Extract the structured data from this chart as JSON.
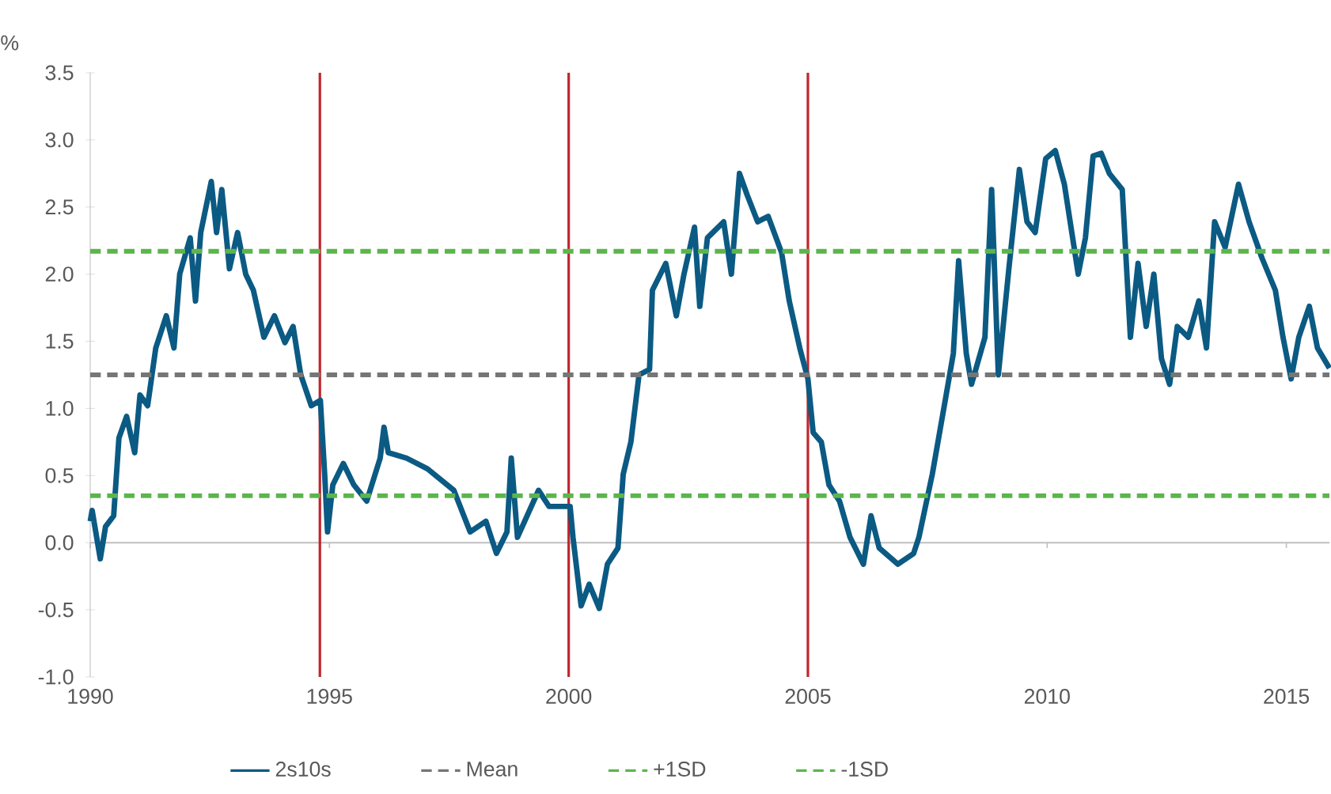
{
  "chart_data": {
    "type": "line",
    "ylabel": "%",
    "xlim": [
      1990,
      2015.9
    ],
    "xticks": [
      1990,
      1995,
      2000,
      2005,
      2010,
      2015
    ],
    "ylim": [
      -1,
      3.5
    ],
    "yticks": [
      {
        "value": -1,
        "label": "-1.0"
      },
      -0.5,
      {
        "value": 0,
        "label": "0.0"
      },
      0.5,
      {
        "value": 1,
        "label": "1.0"
      },
      1.5,
      {
        "value": 2,
        "label": "2.0"
      },
      2.5,
      {
        "value": 3,
        "label": "3.0"
      },
      3.5
    ],
    "legend": "bottom",
    "marker": "none",
    "series": [
      {
        "name": "2s10s",
        "color": "#0b5a83",
        "line_style": "solid",
        "x": [
          1990.0,
          1990.04,
          1990.21,
          1990.32,
          1990.49,
          1990.6,
          1990.76,
          1990.93,
          1991.04,
          1991.2,
          1991.37,
          1991.59,
          1991.75,
          1991.87,
          1992.09,
          1992.2,
          1992.31,
          1992.53,
          1992.64,
          1992.75,
          1992.91,
          1993.08,
          1993.25,
          1993.41,
          1993.63,
          1993.85,
          1994.07,
          1994.24,
          1994.4,
          1994.62,
          1994.81,
          1994.9,
          1994.96,
          1995.07,
          1995.29,
          1995.51,
          1995.78,
          1996.06,
          1996.14,
          1996.23,
          1996.61,
          1997.05,
          1997.6,
          1997.94,
          1998.27,
          1998.49,
          1998.71,
          1998.8,
          1998.93,
          1999.37,
          1999.59,
          2000.03,
          2000.09,
          2000.26,
          2000.43,
          2000.64,
          2000.81,
          2001.03,
          2001.14,
          2001.3,
          2001.47,
          2001.69,
          2001.75,
          2002.03,
          2002.25,
          2002.41,
          2002.63,
          2002.74,
          2002.9,
          2003.24,
          2003.4,
          2003.57,
          2003.73,
          2003.95,
          2004.17,
          2004.45,
          2004.61,
          2004.83,
          2005.0,
          2005.11,
          2005.28,
          2005.44,
          2005.66,
          2005.88,
          2006.16,
          2006.32,
          2006.49,
          2006.88,
          2007.21,
          2007.32,
          2007.6,
          2007.87,
          2008.04,
          2008.15,
          2008.31,
          2008.42,
          2008.7,
          2008.84,
          2008.98,
          2009.2,
          2009.42,
          2009.58,
          2009.75,
          2009.97,
          2010.17,
          2010.36,
          2010.65,
          2010.8,
          2010.96,
          2011.13,
          2011.3,
          2011.57,
          2011.74,
          2011.9,
          2012.07,
          2012.23,
          2012.39,
          2012.56,
          2012.72,
          2012.95,
          2013.17,
          2013.33,
          2013.5,
          2013.72,
          2014.0,
          2014.22,
          2014.49,
          2014.77,
          2014.93,
          2015.1,
          2015.26,
          2015.48,
          2015.65,
          2015.9
        ],
        "values": [
          0.16,
          0.24,
          -0.12,
          0.12,
          0.2,
          0.78,
          0.94,
          0.67,
          1.1,
          1.02,
          1.45,
          1.69,
          1.45,
          2.0,
          2.27,
          1.8,
          2.31,
          2.69,
          2.31,
          2.63,
          2.04,
          2.31,
          2.0,
          1.88,
          1.53,
          1.69,
          1.49,
          1.61,
          1.25,
          1.02,
          1.06,
          0.51,
          0.08,
          0.43,
          0.59,
          0.43,
          0.31,
          0.63,
          0.86,
          0.67,
          0.63,
          0.55,
          0.39,
          0.08,
          0.16,
          -0.08,
          0.08,
          0.63,
          0.04,
          0.39,
          0.27,
          0.27,
          0.04,
          -0.47,
          -0.31,
          -0.49,
          -0.16,
          -0.04,
          0.51,
          0.75,
          1.25,
          1.29,
          1.88,
          2.08,
          1.69,
          2.0,
          2.35,
          1.76,
          2.27,
          2.39,
          2.0,
          2.75,
          2.59,
          2.39,
          2.43,
          2.16,
          1.8,
          1.45,
          1.22,
          0.82,
          0.75,
          0.43,
          0.31,
          0.04,
          -0.16,
          0.2,
          -0.04,
          -0.16,
          -0.08,
          0.04,
          0.51,
          1.06,
          1.41,
          2.1,
          1.41,
          1.18,
          1.53,
          2.63,
          1.25,
          2.04,
          2.78,
          2.39,
          2.31,
          2.86,
          2.92,
          2.67,
          2.0,
          2.27,
          2.88,
          2.9,
          2.75,
          2.63,
          1.53,
          2.08,
          1.61,
          2.0,
          1.37,
          1.18,
          1.61,
          1.53,
          1.8,
          1.45,
          2.39,
          2.2,
          2.67,
          2.39,
          2.12,
          1.88,
          1.53,
          1.22,
          1.53,
          1.76,
          1.45,
          1.3
        ]
      },
      {
        "name": "Mean",
        "color": "#767676",
        "line_style": "dashed",
        "x": [
          1990,
          2015.9
        ],
        "values": [
          1.25,
          1.25
        ]
      },
      {
        "name": "+1SD",
        "color": "#5cb54c",
        "line_style": "dashed",
        "x": [
          1990,
          2015.9
        ],
        "values": [
          2.17,
          2.17
        ]
      },
      {
        "name": "-1SD",
        "color": "#5cb54c",
        "line_style": "dashed",
        "x": [
          1990,
          2015.9
        ],
        "values": [
          0.35,
          0.35
        ]
      }
    ],
    "ref_lines": [
      {
        "axis": "x",
        "value": 1994.8,
        "color": "#c0262d"
      },
      {
        "axis": "x",
        "value": 2000,
        "color": "#c0262d"
      },
      {
        "axis": "x",
        "value": 2005,
        "color": "#c0262d"
      }
    ]
  }
}
